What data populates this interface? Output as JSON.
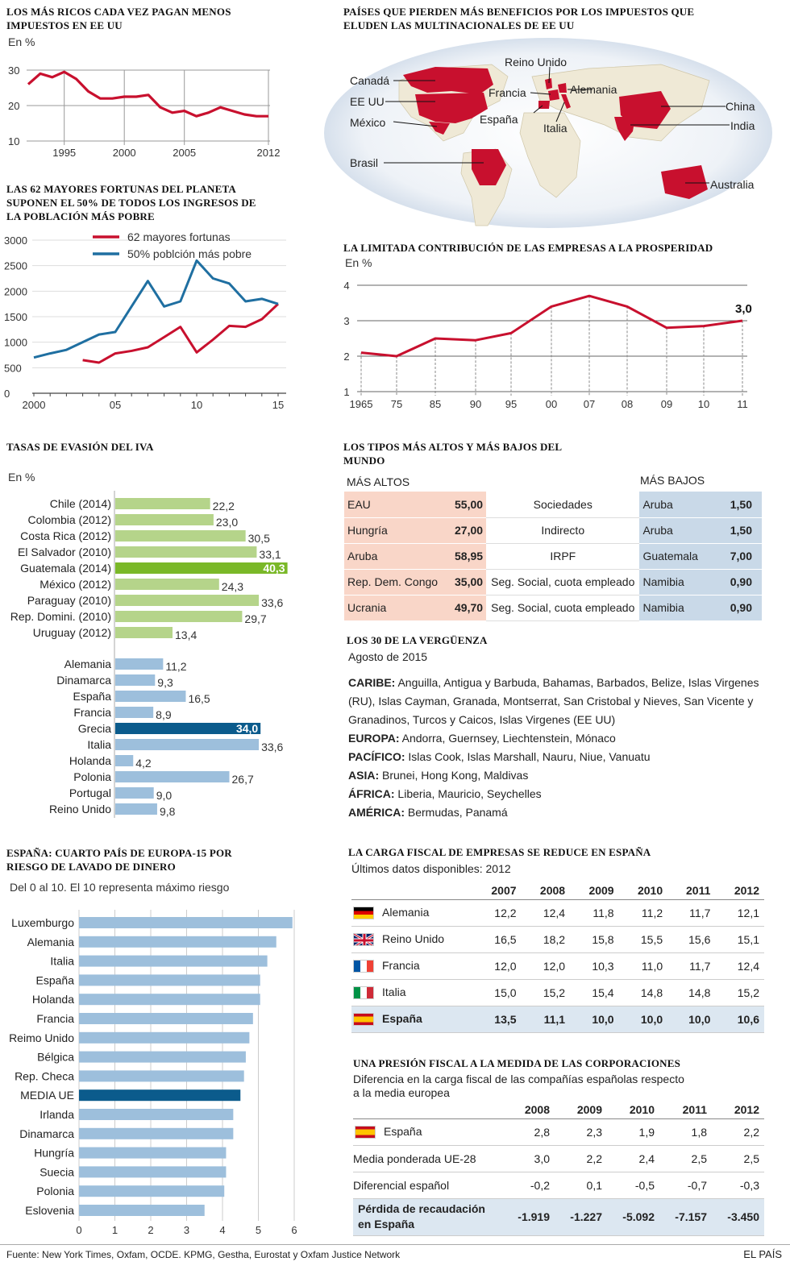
{
  "colors": {
    "red": "#c8102e",
    "blue": "#1f6fa1",
    "green_light": "#b5d48a",
    "green_dark": "#7ab828",
    "blue_light": "#9dbfdc",
    "blue_dark": "#0b5b8c"
  },
  "footer": {
    "source": "Fuente: New York Times, Oxfam, OCDE. KPMG, Gestha, Eurostat y Oxfam Justice Network",
    "brand": "EL PAÍS"
  },
  "chart_data": [
    {
      "id": "ricos",
      "type": "line",
      "title": "LOS MÁS RICOS CADA VEZ PAGAN MENOS IMPUESTOS EN EE UU",
      "ylabel": "En %",
      "x": [
        1992,
        1993,
        1994,
        1995,
        1996,
        1997,
        1998,
        1999,
        2000,
        2001,
        2002,
        2003,
        2004,
        2005,
        2006,
        2007,
        2008,
        2009,
        2010,
        2011,
        2012
      ],
      "y": [
        26.0,
        29.0,
        28.0,
        29.5,
        27.5,
        24.0,
        22.0,
        22.0,
        22.5,
        22.5,
        23.0,
        19.5,
        18.0,
        18.5,
        17.0,
        18.0,
        19.5,
        18.5,
        17.5,
        17.0,
        17.0
      ],
      "xticks": [
        "1995",
        "2000",
        "2005",
        "2012"
      ],
      "yticks": [
        "30",
        "20",
        "10"
      ],
      "ylim": [
        10,
        30
      ]
    },
    {
      "id": "fortunas",
      "type": "line",
      "title": "LAS 62 MAYORES FORTUNAS DEL PLANETA SUPONEN EL 50% DE TODOS LOS INGRESOS DE LA POBLACIÓN MÁS POBRE",
      "xticks": [
        "2000",
        "05",
        "10",
        "15"
      ],
      "yticks": [
        "3000",
        "2500",
        "2000",
        "1500",
        "1000",
        "500",
        "0"
      ],
      "ylim": [
        0,
        3000
      ],
      "series": [
        {
          "name": "62 mayores fortunas",
          "x": [
            2003,
            2004,
            2005,
            2006,
            2007,
            2008,
            2009,
            2010,
            2011,
            2012,
            2013,
            2014,
            2015
          ],
          "y": [
            650,
            600,
            780,
            830,
            900,
            1100,
            1300,
            800,
            1050,
            1320,
            1300,
            1450,
            1750
          ]
        },
        {
          "name": "50% poblción más pobre",
          "x": [
            2000,
            2001,
            2002,
            2003,
            2004,
            2005,
            2006,
            2007,
            2008,
            2009,
            2010,
            2011,
            2012,
            2013,
            2014,
            2015
          ],
          "y": [
            700,
            780,
            850,
            1000,
            1150,
            1200,
            1700,
            2200,
            1700,
            1800,
            2600,
            2250,
            2150,
            1800,
            1850,
            1750
          ]
        }
      ]
    },
    {
      "id": "prosperidad",
      "type": "line",
      "title": "LA LIMITADA CONTRIBUCIÓN DE LAS EMPRESAS A LA PROSPERIDAD",
      "ylabel": "En %",
      "categories": [
        "1965",
        "75",
        "85",
        "90",
        "95",
        "00",
        "07",
        "08",
        "09",
        "10",
        "11"
      ],
      "values": [
        2.1,
        2.0,
        2.5,
        2.45,
        2.65,
        3.4,
        3.7,
        3.4,
        2.8,
        2.85,
        3.0
      ],
      "yticks": [
        "4",
        "3",
        "2",
        "1"
      ],
      "ylim": [
        1,
        4
      ],
      "end_label": "3,0"
    },
    {
      "id": "iva",
      "type": "bar",
      "title": "TASAS DE EVASIÓN DEL IVA",
      "ylabel": "En %",
      "groups": [
        {
          "categories": [
            "Chile (2014)",
            "Colombia (2012)",
            "Costa Rica (2012)",
            "El Salvador (2010)",
            "Guatemala (2014)",
            "México (2012)",
            "Paraguay (2010)",
            "Rep. Domini. (2010)",
            "Uruguay (2012)"
          ],
          "values": [
            22.2,
            23.0,
            30.5,
            33.1,
            40.3,
            24.3,
            33.6,
            29.7,
            13.4
          ],
          "labels": [
            "22,2",
            "23,0",
            "30,5",
            "33,1",
            "40,3",
            "24,3",
            "33,6",
            "29,7",
            "13,4"
          ],
          "highlight": 4
        },
        {
          "categories": [
            "Alemania",
            "Dinamarca",
            "España",
            "Francia",
            "Grecia",
            "Italia",
            "Holanda",
            "Polonia",
            "Portugal",
            "Reino Unido"
          ],
          "values": [
            11.2,
            9.3,
            16.5,
            8.9,
            34.0,
            33.6,
            4.2,
            26.7,
            9.0,
            9.8
          ],
          "labels": [
            "11,2",
            "9,3",
            "16,5",
            "8,9",
            "34,0",
            "33,6",
            "4,2",
            "26,7",
            "9,0",
            "9,8"
          ],
          "highlight": 4
        }
      ]
    },
    {
      "id": "lavado",
      "type": "bar",
      "title": "ESPAÑA: CUARTO PAÍS DE EUROPA-15 POR RIESGO DE LAVADO DE DINERO",
      "subtitle": "Del 0 al 10. El 10 representa máximo riesgo",
      "categories": [
        "Luxemburgo",
        "Alemania",
        "Italia",
        "España",
        "Holanda",
        "Francia",
        "Reimo Unido",
        "Bélgica",
        "Rep. Checa",
        "MEDIA UE",
        "Irlanda",
        "Dinamarca",
        "Hungría",
        "Suecia",
        "Polonia",
        "Eslovenia"
      ],
      "values": [
        5.95,
        5.5,
        5.25,
        5.05,
        5.05,
        4.85,
        4.75,
        4.65,
        4.6,
        4.5,
        4.3,
        4.3,
        4.1,
        4.1,
        4.05,
        3.5
      ],
      "highlight": 9,
      "xticks": [
        "0",
        "1",
        "2",
        "3",
        "4",
        "5",
        "6"
      ],
      "xlim": [
        0,
        6
      ]
    }
  ],
  "mapa": {
    "title": "PAÍSES QUE PIERDEN MÁS BENEFICIOS POR LOS IMPUESTOS QUE ELUDEN LAS MULTINACIONALES DE EE UU",
    "labels": [
      "Canadá",
      "EE UU",
      "México",
      "Brasil",
      "Reino Unido",
      "Francia",
      "Alemania",
      "España",
      "Italia",
      "China",
      "India",
      "Australia"
    ]
  },
  "tipos": {
    "title": "LOS TIPOS MÁS ALTOS Y MÁS BAJOS DEL MUNDO",
    "head_high": "MÁS ALTOS",
    "head_low": "MÁS BAJOS",
    "rows": [
      {
        "hc": "EAU",
        "hv": "55,00",
        "tax": "Sociedades",
        "lc": "Aruba",
        "lv": "1,50"
      },
      {
        "hc": "Hungría",
        "hv": "27,00",
        "tax": "Indirecto",
        "lc": "Aruba",
        "lv": "1,50"
      },
      {
        "hc": "Aruba",
        "hv": "58,95",
        "tax": "IRPF",
        "lc": "Guatemala",
        "lv": "7,00"
      },
      {
        "hc": "Rep. Dem. Congo",
        "hv": "35,00",
        "tax": "Seg. Social, cuota empleado",
        "lc": "Namibia",
        "lv": "0,90"
      },
      {
        "hc": "Ucrania",
        "hv": "49,70",
        "tax": "Seg. Social, cuota empleado",
        "lc": "Namibia",
        "lv": "0,90"
      }
    ]
  },
  "verguenza": {
    "title": "LOS 30 DE LA VERGÜENZA",
    "date": "Agosto de 2015",
    "items": [
      {
        "region": "CARIBE:",
        "list": " Anguilla, Antigua y Barbuda, Bahamas, Barbados, Belize, Islas Virgenes (RU), Islas Cayman, Granada, Montserrat, San Cristobal y Nieves, San Vicente y Granadinos, Turcos y Caicos, Islas Virgenes (EE UU)"
      },
      {
        "region": "EUROPA:",
        "list": " Andorra, Guernsey, Liechtenstein, Mónaco"
      },
      {
        "region": "PACÍFICO:",
        "list": " Islas Cook, Islas Marshall, Nauru, Niue, Vanuatu"
      },
      {
        "region": "ASIA:",
        "list": " Brunei, Hong Kong, Maldivas"
      },
      {
        "region": "ÁFRICA:",
        "list": " Liberia, Mauricio, Seychelles"
      },
      {
        "region": "AMÉRICA:",
        "list": " Bermudas, Panamá"
      }
    ]
  },
  "carga": {
    "title": "LA CARGA FISCAL DE EMPRESAS SE REDUCE EN ESPAÑA",
    "subtitle": "Últimos datos disponibles: 2012",
    "years": [
      "2007",
      "2008",
      "2009",
      "2010",
      "2011",
      "2012"
    ],
    "rows": [
      {
        "country": "Alemania",
        "flag": "de-flag",
        "values": [
          "12,2",
          "12,4",
          "11,8",
          "11,2",
          "11,7",
          "12,1"
        ]
      },
      {
        "country": "Reino Unido",
        "flag": "uk-flag",
        "values": [
          "16,5",
          "18,2",
          "15,8",
          "15,5",
          "15,6",
          "15,1"
        ]
      },
      {
        "country": "Francia",
        "flag": "fr-flag",
        "values": [
          "12,0",
          "12,0",
          "10,3",
          "11,0",
          "11,7",
          "12,4"
        ]
      },
      {
        "country": "Italia",
        "flag": "it-flag",
        "values": [
          "15,0",
          "15,2",
          "15,4",
          "14,8",
          "14,8",
          "15,2"
        ]
      },
      {
        "country": "España",
        "flag": "es-flag",
        "values": [
          "13,5",
          "11,1",
          "10,0",
          "10,0",
          "10,0",
          "10,6"
        ]
      }
    ]
  },
  "presion": {
    "title": "UNA PRESIÓN FISCAL A LA MEDIDA DE LAS CORPORACIONES",
    "subtitle": "Diferencia en la carga fiscal de las compañías españolas respecto a la media europea",
    "years": [
      "2008",
      "2009",
      "2010",
      "2011",
      "2012"
    ],
    "rows": [
      {
        "label": "España",
        "values": [
          "2,8",
          "2,3",
          "1,9",
          "1,8",
          "2,2"
        ]
      },
      {
        "label": "Media ponderada UE-28",
        "values": [
          "3,0",
          "2,2",
          "2,4",
          "2,5",
          "2,5"
        ]
      },
      {
        "label": "Diferencial español",
        "values": [
          "-0,2",
          "0,1",
          "-0,5",
          "-0,7",
          "-0,3"
        ]
      },
      {
        "label": "Pérdida de recaudación en España",
        "values": [
          "-1.919",
          "-1.227",
          "-5.092",
          "-7.157",
          "-3.450"
        ]
      }
    ]
  }
}
